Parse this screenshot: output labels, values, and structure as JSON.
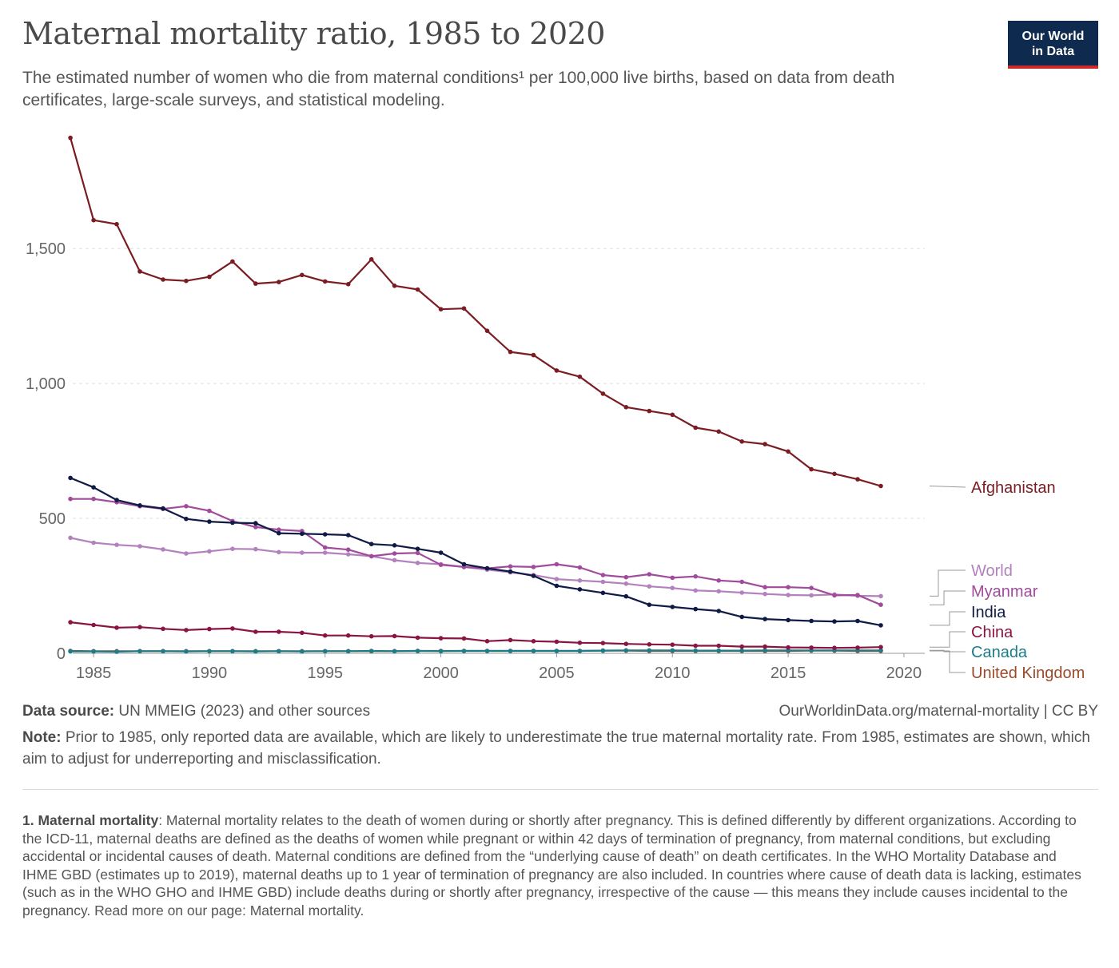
{
  "header": {
    "title": "Maternal mortality ratio, 1985 to 2020",
    "subtitle": "The estimated number of women who die from maternal conditions¹ per 100,000 live births, based on data from death certificates, large-scale surveys, and statistical modeling.",
    "logo_line1": "Our World",
    "logo_line2": "in Data"
  },
  "footer": {
    "source_label": "Data source:",
    "source_text": "UN MMEIG (2023) and other sources",
    "url": "OurWorldinData.org/maternal-mortality | CC BY",
    "note_label": "Note:",
    "note_text": "Prior to 1985, only reported data are available, which are likely to underestimate the true maternal mortality rate. From 1985, estimates are shown, which aim to adjust for underreporting and misclassification.",
    "footnote_label": "1. Maternal mortality",
    "footnote_text": ": Maternal mortality relates to the death of women during or shortly after pregnancy. This is defined differently by different organizations. According to the ICD-11, maternal deaths are defined as the deaths of women while pregnant or within 42 days of termination of pregnancy, from maternal conditions, but excluding accidental or incidental causes of death. Maternal conditions are defined from the “underlying cause of death” on death certificates. In the WHO Mortality Database and IHME GBD (estimates up to 2019), maternal deaths up to 1 year of termination of pregnancy are also included. In countries where cause of death data is lacking, estimates (such as in the WHO GHO and IHME GBD) include deaths during or shortly after pregnancy, irrespective of the cause — this means they include causes incidental to the pregnancy. Read more on our page: Maternal mortality."
  },
  "chart_data": {
    "type": "line",
    "title": "Maternal mortality ratio, 1985 to 2020",
    "xlim": [
      1984,
      2021
    ],
    "ylim": [
      0,
      1900
    ],
    "xticks": [
      1985,
      1990,
      1995,
      2000,
      2005,
      2010,
      2015,
      2020
    ],
    "yticks": [
      0,
      500,
      1000,
      1500
    ],
    "ytick_labels": [
      "0",
      "500",
      "1,000",
      "1,500"
    ],
    "grid": "horizontal dashed",
    "legend": "right, end-of-line labels",
    "x": [
      1984,
      1985,
      1986,
      1987,
      1988,
      1989,
      1990,
      1991,
      1992,
      1993,
      1994,
      1995,
      1996,
      1997,
      1998,
      1999,
      2000,
      2001,
      2002,
      2003,
      2004,
      2005,
      2006,
      2007,
      2008,
      2009,
      2010,
      2011,
      2012,
      2013,
      2014,
      2015,
      2016,
      2017,
      2018,
      2019,
      2020,
      2021
    ],
    "series": [
      {
        "name": "Afghanistan",
        "color": "#7a1c22",
        "values": [
          1910,
          1605,
          1590,
          1415,
          1385,
          1380,
          1395,
          1452,
          1370,
          1376,
          1402,
          1378,
          1368,
          1460,
          1362,
          1348,
          1275,
          1278,
          1195,
          1117,
          1105,
          1048,
          1025,
          962,
          912,
          898,
          884,
          836,
          822,
          785,
          775,
          748,
          682,
          665,
          645,
          620,
          null,
          null
        ]
      },
      {
        "name": "World",
        "color": "#b381bd",
        "values": [
          428,
          410,
          402,
          397,
          385,
          370,
          378,
          387,
          386,
          375,
          373,
          373,
          367,
          360,
          345,
          335,
          330,
          320,
          310,
          300,
          290,
          275,
          270,
          265,
          258,
          248,
          242,
          233,
          230,
          225,
          220,
          216,
          215,
          218,
          213,
          212,
          null,
          null
        ]
      },
      {
        "name": "Myanmar",
        "color": "#a04b9c",
        "values": [
          572,
          572,
          560,
          545,
          535,
          545,
          528,
          490,
          468,
          458,
          453,
          392,
          384,
          360,
          370,
          372,
          328,
          320,
          315,
          322,
          320,
          330,
          318,
          290,
          282,
          293,
          280,
          285,
          270,
          265,
          245,
          245,
          242,
          215,
          216,
          180,
          null,
          null
        ]
      },
      {
        "name": "India",
        "color": "#0f1a45",
        "values": [
          650,
          615,
          568,
          548,
          537,
          498,
          488,
          484,
          482,
          445,
          443,
          441,
          438,
          405,
          400,
          387,
          373,
          330,
          315,
          303,
          287,
          250,
          237,
          224,
          211,
          180,
          172,
          164,
          157,
          135,
          127,
          123,
          120,
          118,
          120,
          104,
          null,
          null
        ]
      },
      {
        "name": "China",
        "color": "#8a1542",
        "values": [
          115,
          105,
          95,
          97,
          91,
          86,
          90,
          92,
          80,
          80,
          76,
          66,
          66,
          63,
          64,
          58,
          56,
          55,
          45,
          49,
          45,
          43,
          39,
          38,
          35,
          33,
          32,
          28,
          28,
          25,
          25,
          22,
          21,
          20,
          21,
          23,
          null,
          null
        ]
      },
      {
        "name": "Canada",
        "color": "#1b7d8a",
        "values": [
          7,
          7,
          6,
          8,
          8,
          7,
          8,
          8,
          7,
          8,
          7,
          8,
          8,
          9,
          8,
          9,
          8,
          9,
          9,
          9,
          9,
          9,
          9,
          10,
          11,
          11,
          11,
          10,
          10,
          10,
          11,
          11,
          11,
          11,
          11,
          11,
          null,
          null
        ]
      },
      {
        "name": "United Kingdom",
        "color": "#9b4b2b",
        "values": [
          9,
          8,
          8,
          8,
          8,
          8,
          8,
          8,
          8,
          8,
          8,
          8,
          8,
          8,
          8,
          9,
          9,
          9,
          9,
          9,
          9,
          9,
          9,
          10,
          10,
          9,
          9,
          9,
          9,
          9,
          9,
          9,
          10,
          10,
          9,
          9,
          null,
          null
        ]
      }
    ]
  }
}
